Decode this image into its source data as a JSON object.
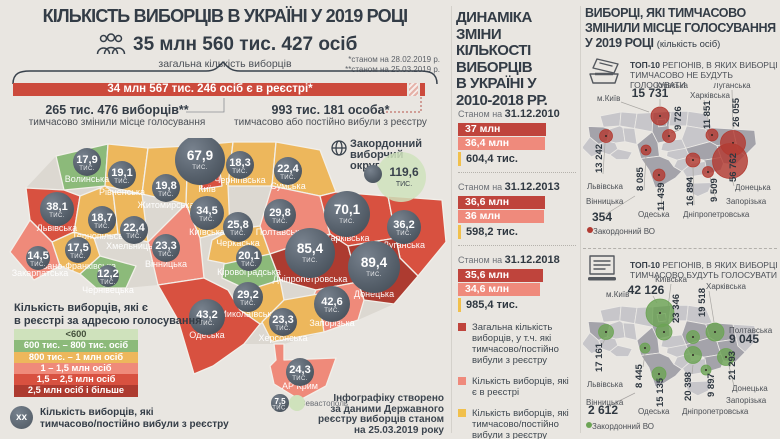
{
  "header": {
    "title": "КІЛЬКІСТЬ ВИБОРЦІВ В УКРАЇНІ У 2019 РОЦІ",
    "total": "35 млн 560 тис. 427 осіб",
    "total_caption": "загальна кількість виборців",
    "note1": "*станом на 28.02.2019 р.",
    "note2": "**станом на 25.03.2019 р.",
    "registry_banner": "34 млн 567 тис. 246 осіб є в реєстрі*",
    "changed_place_value": "265 тис. 476 виборців**",
    "changed_place_caption": "тимчасово змінили місце голосування",
    "left_registry_value": "993 тис. 181 особа*",
    "left_registry_caption": "тимчасово або постійно вибули з реєстру"
  },
  "map": {
    "abroad_label": "Закордонний\nвиборчий\nокруг",
    "abroad_value": "119,6",
    "abroad_unit": "тис.",
    "unit": "тис.",
    "regions": [
      {
        "id": "volyn",
        "name": "Волинська",
        "value": "17,9",
        "num": 17.9,
        "cat": 2
      },
      {
        "id": "rivne",
        "name": "Рівненська",
        "value": "19,1",
        "num": 19.1,
        "cat": 3
      },
      {
        "id": "zhytomyr",
        "name": "Житомирська",
        "value": "19,8",
        "num": 19.8,
        "cat": 3
      },
      {
        "id": "kyiv-city",
        "name": "Київ",
        "value": "67,9",
        "num": 67.9,
        "cat": 5
      },
      {
        "id": "kyivska",
        "name": "Київська",
        "value": "34,5",
        "num": 34.5,
        "cat": 3
      },
      {
        "id": "chernihiv",
        "name": "Чернігівська",
        "value": "18,3",
        "num": 18.3,
        "cat": 3
      },
      {
        "id": "sumy",
        "name": "Сумська",
        "value": "22,4",
        "num": 22.4,
        "cat": 3
      },
      {
        "id": "lviv",
        "name": "Львівська",
        "value": "38,1",
        "num": 38.1,
        "cat": 5
      },
      {
        "id": "ternopil",
        "name": "Тернопільська",
        "value": "18,7",
        "num": 18.7,
        "cat": 3
      },
      {
        "id": "khmelnytsky",
        "name": "Хмельницька",
        "value": "22,4",
        "num": 22.4,
        "cat": 3
      },
      {
        "id": "vinnytsia",
        "name": "Вінницька",
        "value": "23,3",
        "num": 23.3,
        "cat": 4
      },
      {
        "id": "ivano-frankivsk",
        "name": "Івано-Франківська",
        "value": "17,5",
        "num": 17.5,
        "cat": 3
      },
      {
        "id": "zakarpattia",
        "name": "Закарпатська",
        "value": "14,5",
        "num": 14.5,
        "cat": 4
      },
      {
        "id": "chernivtsi",
        "name": "Чернівецька",
        "value": "12,2",
        "num": 12.2,
        "cat": 2
      },
      {
        "id": "cherkasy",
        "name": "Черкаська",
        "value": "25,8",
        "num": 25.8,
        "cat": 3
      },
      {
        "id": "poltava",
        "name": "Полтавська",
        "value": "29,8",
        "num": 29.8,
        "cat": 4
      },
      {
        "id": "kharkiv",
        "name": "Харківська",
        "value": "70,1",
        "num": 70.1,
        "cat": 5
      },
      {
        "id": "luhansk",
        "name": "Луганська",
        "value": "36,2",
        "num": 36.2,
        "cat": 5
      },
      {
        "id": "kirovohrad",
        "name": "Кіровоградська",
        "value": "20,1",
        "num": 20.1,
        "cat": 2
      },
      {
        "id": "dnipro",
        "name": "Дніпропетровська",
        "value": "85,4",
        "num": 85.4,
        "cat": 6
      },
      {
        "id": "donetsk",
        "name": "Донецька",
        "value": "89,4",
        "num": 89.4,
        "cat": 6
      },
      {
        "id": "zaporizhzhia",
        "name": "Запорізька",
        "value": "42,6",
        "num": 42.6,
        "cat": 4
      },
      {
        "id": "mykolaiv",
        "name": "Миколаївська",
        "value": "29,2",
        "num": 29.2,
        "cat": 3
      },
      {
        "id": "odesa",
        "name": "Одеська",
        "value": "43,2",
        "num": 43.2,
        "cat": 5
      },
      {
        "id": "kherson",
        "name": "Херсонська",
        "value": "23,3",
        "num": 23.3,
        "cat": 3
      },
      {
        "id": "crimea",
        "name": "АР Крим",
        "value": "24,3",
        "num": 24.3,
        "cat": 4
      },
      {
        "id": "sevastopol",
        "name": "м.Севастополь",
        "value": "7,5",
        "num": 7.5,
        "cat": 1
      }
    ]
  },
  "scale_legend": {
    "title": "Кількість виборців, які є\nв реєстрі за адресою голосування",
    "rows": [
      {
        "label": "<600",
        "color": "#cfe2bc",
        "dark_text": true
      },
      {
        "label": "600 тис. – 800 тис. осіб",
        "color": "#8cba7a"
      },
      {
        "label": "800 тис. – 1 млн осіб",
        "color": "#edb75c"
      },
      {
        "label": "1 – 1,5 млн осіб",
        "color": "#ef8a7a"
      },
      {
        "label": "1,5 – 2,5 млн осіб",
        "color": "#d85140"
      },
      {
        "label": "2,5 млн осіб і більше",
        "color": "#ad3b30"
      }
    ]
  },
  "xx_legend": {
    "marker": "хх",
    "caption": "Кількість виборців, які\nтимчасово/постійно вибули з реєстру"
  },
  "footer": "Інфографіку створено\nза даними Державного\nреєстру виборців станом\nна 25.03.2019 року",
  "dynamics": {
    "title": "ДИНАМІКА\nЗМІНИ\nКІЛЬКОСТІ\nВИБОРЦІВ\nВ УКРАЇНІ У\n2010-2018 РР.",
    "date_prefix": "Станом на ",
    "snapshots": [
      {
        "date": "31.12.2010",
        "total": "37 млн",
        "total_num": 37.0,
        "registry": "36,4 млн",
        "registry_num": 36.4,
        "excluded": "604,4 тис."
      },
      {
        "date": "31.12.2013",
        "total": "36,6 млн",
        "total_num": 36.6,
        "registry": "36 млн",
        "registry_num": 36.0,
        "excluded": "598,2 тис."
      },
      {
        "date": "31.12.2018",
        "total": "35,6 млн",
        "total_num": 35.6,
        "registry": "34,6 млн",
        "registry_num": 34.6,
        "excluded": "985,4 тис."
      }
    ],
    "legend": [
      {
        "color": "#bf443c",
        "text": "Загальна кількість виборців, у т.ч. які тимчасово/постійно вибули з реєстру"
      },
      {
        "color": "#ef8a7c",
        "text": "Кількість виборців, які є в реєстрі"
      },
      {
        "color": "#f1c04c",
        "text": "Кількість виборців, які тимчасово/постійно вибули з реєстру"
      }
    ]
  },
  "relocated": {
    "title": "ВИБОРЦІ, ЯКІ ТИМЧАСОВО\nЗМІНИЛИ МІСЦЕ ГОЛОСУВАННЯ\nУ 2019 РОЦІ ",
    "title_suffix": "(кількість осіб)",
    "map_not_voting": {
      "caption_bold": "ТОП-10",
      "caption_text": " РЕГІОНІВ, В ЯКИХ ВИБОРЦІ\nТИМЧАСОВО НЕ БУДУТЬ ГОЛОСУВАТИ",
      "abroad_value": "354",
      "abroad_label": "Закордонний ВО",
      "circle_color": "#b23b32",
      "regions": [
        {
          "id": "kyiv-city",
          "name": "м.Київ",
          "value": "15 731",
          "num": 15731
        },
        {
          "id": "kyivska",
          "name": "Київська",
          "value": "9 726",
          "num": 9726
        },
        {
          "id": "kharkiv",
          "name": "Харківська",
          "value": "11 851",
          "num": 11851
        },
        {
          "id": "luhansk",
          "name": "Луганська",
          "value": "26 055",
          "num": 26055
        },
        {
          "id": "lviv",
          "name": "Львівська",
          "value": "13 242",
          "num": 13242
        },
        {
          "id": "vinnytsia",
          "name": "Вінницька",
          "value": "8 085",
          "num": 8085
        },
        {
          "id": "odesa",
          "name": "Одеська",
          "value": "11 439",
          "num": 11439
        },
        {
          "id": "dnipro",
          "name": "Дніпропетровська",
          "value": "16 894",
          "num": 16894
        },
        {
          "id": "zaporizhzhia",
          "name": "Запорізька",
          "value": "9 509",
          "num": 9509
        },
        {
          "id": "donetsk",
          "name": "Донецька",
          "value": "56 762",
          "num": 56762
        }
      ]
    },
    "map_voting": {
      "caption_bold": "ТОП-10",
      "caption_text": " РЕГІОНІВ, В ЯКИХ ВИБОРЦІ\nТИМЧАСОВО БУДУТЬ ГОЛОСУВАТИ",
      "abroad_value": "2 612",
      "abroad_label": "Закордонний ВО",
      "circle_color": "#6ca455",
      "regions": [
        {
          "id": "kyiv-city",
          "name": "м.Київ",
          "value": "42 126",
          "num": 42126
        },
        {
          "id": "kyivska",
          "name": "Київська",
          "value": "23 346",
          "num": 23346
        },
        {
          "id": "kharkiv",
          "name": "Харківська",
          "value": "19 518",
          "num": 19518
        },
        {
          "id": "poltava",
          "name": "Полтавська",
          "value": "9 045",
          "num": 9045
        },
        {
          "id": "lviv",
          "name": "Львівська",
          "value": "17 161",
          "num": 17161
        },
        {
          "id": "vinnytsia",
          "name": "Вінницька",
          "value": "8 445",
          "num": 8445
        },
        {
          "id": "odesa",
          "name": "Одеська",
          "value": "15 135",
          "num": 15135
        },
        {
          "id": "dnipro",
          "name": "Дніпропетровська",
          "value": "20 398",
          "num": 20398
        },
        {
          "id": "zaporizhzhia",
          "name": "Запорізька",
          "value": "9 897",
          "num": 9897
        },
        {
          "id": "donetsk",
          "name": "Донецька",
          "value": "21 293",
          "num": 21293
        }
      ]
    }
  },
  "chart_data": [
    {
      "type": "heatmap",
      "subtype": "choropleth-with-proportional-symbols",
      "title": "Кількість виборців в Україні у 2019 році",
      "symbol_unit": "тис. осіб, які тимчасово/постійно вибули з реєстру",
      "legend_bins": [
        "<600",
        "600 тис. – 800 тис. осіб",
        "800 тис. – 1 млн осіб",
        "1 – 1,5 млн осіб",
        "1,5 – 2,5 млн осіб",
        "2,5 млн осіб і більше"
      ],
      "abroad_district_thousands": 119.6,
      "points": [
        {
          "region": "Волинська",
          "excluded_thousands": 17.9,
          "bin": 2
        },
        {
          "region": "Рівненська",
          "excluded_thousands": 19.1,
          "bin": 3
        },
        {
          "region": "Житомирська",
          "excluded_thousands": 19.8,
          "bin": 3
        },
        {
          "region": "Київ",
          "excluded_thousands": 67.9,
          "bin": 5
        },
        {
          "region": "Київська",
          "excluded_thousands": 34.5,
          "bin": 3
        },
        {
          "region": "Чернігівська",
          "excluded_thousands": 18.3,
          "bin": 3
        },
        {
          "region": "Сумська",
          "excluded_thousands": 22.4,
          "bin": 3
        },
        {
          "region": "Львівська",
          "excluded_thousands": 38.1,
          "bin": 5
        },
        {
          "region": "Тернопільська",
          "excluded_thousands": 18.7,
          "bin": 3
        },
        {
          "region": "Хмельницька",
          "excluded_thousands": 22.4,
          "bin": 3
        },
        {
          "region": "Вінницька",
          "excluded_thousands": 23.3,
          "bin": 4
        },
        {
          "region": "Івано-Франківська",
          "excluded_thousands": 17.5,
          "bin": 3
        },
        {
          "region": "Закарпатська",
          "excluded_thousands": 14.5,
          "bin": 4
        },
        {
          "region": "Чернівецька",
          "excluded_thousands": 12.2,
          "bin": 2
        },
        {
          "region": "Черкаська",
          "excluded_thousands": 25.8,
          "bin": 3
        },
        {
          "region": "Полтавська",
          "excluded_thousands": 29.8,
          "bin": 4
        },
        {
          "region": "Харківська",
          "excluded_thousands": 70.1,
          "bin": 5
        },
        {
          "region": "Луганська",
          "excluded_thousands": 36.2,
          "bin": 5
        },
        {
          "region": "Кіровоградська",
          "excluded_thousands": 20.1,
          "bin": 2
        },
        {
          "region": "Дніпропетровська",
          "excluded_thousands": 85.4,
          "bin": 6
        },
        {
          "region": "Донецька",
          "excluded_thousands": 89.4,
          "bin": 6
        },
        {
          "region": "Запорізька",
          "excluded_thousands": 42.6,
          "bin": 4
        },
        {
          "region": "Миколаївська",
          "excluded_thousands": 29.2,
          "bin": 3
        },
        {
          "region": "Одеська",
          "excluded_thousands": 43.2,
          "bin": 5
        },
        {
          "region": "Херсонська",
          "excluded_thousands": 23.3,
          "bin": 3
        },
        {
          "region": "АР Крим",
          "excluded_thousands": 24.3,
          "bin": 4
        },
        {
          "region": "м.Севастополь",
          "excluded_thousands": 7.5,
          "bin": 1
        }
      ]
    },
    {
      "type": "bar",
      "title": "Динаміка зміни кількості виборців в Україні у 2010-2018 рр.",
      "categories": [
        "31.12.2010",
        "31.12.2013",
        "31.12.2018"
      ],
      "series": [
        {
          "name": "Загальна кількість виборців, у т.ч. які тимчасово/постійно вибули з реєстру (млн)",
          "values": [
            37.0,
            36.6,
            35.6
          ]
        },
        {
          "name": "Кількість виборців, які є в реєстрі (млн)",
          "values": [
            36.4,
            36.0,
            34.6
          ]
        },
        {
          "name": "Кількість виборців, які тимчасово/постійно вибули з реєстру (тис.)",
          "values": [
            604.4,
            598.2,
            985.4
          ]
        }
      ],
      "legend_position": "bottom",
      "orientation": "horizontal"
    },
    {
      "type": "heatmap",
      "subtype": "proportional-symbol-map",
      "title": "ТОП-10 регіонів, в яких виборці тимчасово не будуть голосувати (осіб)",
      "abroad_district": 354,
      "points": [
        {
          "region": "м.Київ",
          "value": 15731
        },
        {
          "region": "Київська",
          "value": 9726
        },
        {
          "region": "Харківська",
          "value": 11851
        },
        {
          "region": "Луганська",
          "value": 26055
        },
        {
          "region": "Львівська",
          "value": 13242
        },
        {
          "region": "Вінницька",
          "value": 8085
        },
        {
          "region": "Одеська",
          "value": 11439
        },
        {
          "region": "Дніпропетровська",
          "value": 16894
        },
        {
          "region": "Запорізька",
          "value": 9509
        },
        {
          "region": "Донецька",
          "value": 56762
        }
      ]
    },
    {
      "type": "heatmap",
      "subtype": "proportional-symbol-map",
      "title": "ТОП-10 регіонів, в яких виборці тимчасово будуть голосувати (осіб)",
      "abroad_district": 2612,
      "points": [
        {
          "region": "м.Київ",
          "value": 42126
        },
        {
          "region": "Київська",
          "value": 23346
        },
        {
          "region": "Харківська",
          "value": 19518
        },
        {
          "region": "Полтавська",
          "value": 9045
        },
        {
          "region": "Львівська",
          "value": 17161
        },
        {
          "region": "Вінницька",
          "value": 8445
        },
        {
          "region": "Одеська",
          "value": 15135
        },
        {
          "region": "Дніпропетровська",
          "value": 20398
        },
        {
          "region": "Запорізька",
          "value": 9897
        },
        {
          "region": "Донецька",
          "value": 21293
        }
      ]
    }
  ]
}
